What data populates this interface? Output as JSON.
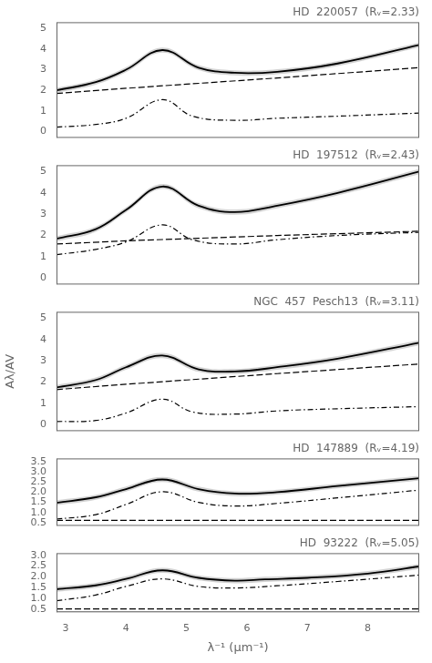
{
  "chart_data": [
    {
      "type": "line",
      "title": "HD  220057  (Rᵥ=2.33)",
      "xlim": [
        2.85,
        8.85
      ],
      "ylim": [
        -0.3,
        5.3
      ],
      "yticks": [
        0,
        1,
        2,
        3,
        4,
        5
      ],
      "grid": false,
      "tick_labels": "y",
      "series": [
        {
          "line_style": "solid",
          "color": "#000000",
          "x": [
            2.85,
            3.5,
            4.0,
            4.6,
            5.2,
            5.8,
            6.5,
            7.5,
            8.85
          ],
          "values": [
            2.0,
            2.4,
            3.0,
            3.95,
            3.1,
            2.85,
            2.9,
            3.3,
            4.2
          ],
          "band": {
            "color": "#808080",
            "lower": [
              1.88,
              2.28,
              2.88,
              3.83,
              2.98,
              2.73,
              2.78,
              3.18,
              4.08
            ],
            "upper": [
              2.12,
              2.52,
              3.12,
              4.07,
              3.22,
              2.97,
              3.02,
              3.42,
              4.32
            ]
          }
        },
        {
          "line_style": "dashed",
          "color": "#000000",
          "x": [
            2.85,
            4.0,
            5.0,
            6.5,
            8.85
          ],
          "values": [
            1.85,
            2.1,
            2.3,
            2.6,
            3.1
          ]
        },
        {
          "line_style": "dashdot",
          "color": "#000000",
          "x": [
            2.85,
            3.5,
            4.0,
            4.6,
            5.1,
            5.8,
            6.5,
            7.5,
            8.85
          ],
          "values": [
            0.22,
            0.35,
            0.65,
            1.55,
            0.75,
            0.55,
            0.65,
            0.75,
            0.9
          ]
        }
      ]
    },
    {
      "type": "line",
      "title": "HD  197512  (Rᵥ=2.43)",
      "xlim": [
        2.85,
        8.85
      ],
      "ylim": [
        -0.3,
        5.3
      ],
      "yticks": [
        0,
        1,
        2,
        3,
        4,
        5
      ],
      "grid": false,
      "tick_labels": "y",
      "series": [
        {
          "line_style": "solid",
          "color": "#000000",
          "x": [
            2.85,
            3.5,
            4.0,
            4.6,
            5.2,
            5.8,
            6.5,
            7.5,
            8.85
          ],
          "values": [
            1.85,
            2.3,
            3.2,
            4.3,
            3.4,
            3.1,
            3.4,
            4.0,
            5.0
          ],
          "band": {
            "color": "#808080",
            "lower": [
              1.73,
              2.18,
              3.08,
              4.18,
              3.28,
              2.98,
              3.28,
              3.88,
              4.88
            ],
            "upper": [
              1.97,
              2.42,
              3.32,
              4.42,
              3.52,
              3.22,
              3.52,
              4.12,
              5.12
            ]
          }
        },
        {
          "line_style": "dashed",
          "color": "#000000",
          "x": [
            2.85,
            4.0,
            5.0,
            6.5,
            8.85
          ],
          "values": [
            1.6,
            1.75,
            1.85,
            2.0,
            2.2
          ]
        },
        {
          "line_style": "dashdot",
          "color": "#000000",
          "x": [
            2.85,
            3.5,
            4.0,
            4.6,
            5.1,
            5.8,
            6.5,
            7.5,
            8.85
          ],
          "values": [
            1.1,
            1.35,
            1.7,
            2.5,
            1.8,
            1.6,
            1.8,
            2.0,
            2.15
          ]
        }
      ]
    },
    {
      "type": "line",
      "title": "NGC  457  Pesch13  (Rᵥ=3.11)",
      "ylabel": "Aλ/AV",
      "xlim": [
        2.85,
        8.85
      ],
      "ylim": [
        -0.3,
        5.3
      ],
      "yticks": [
        0,
        1,
        2,
        3,
        4,
        5
      ],
      "grid": false,
      "tick_labels": "y",
      "series": [
        {
          "line_style": "solid",
          "color": "#000000",
          "x": [
            2.85,
            3.5,
            4.0,
            4.6,
            5.2,
            5.8,
            6.5,
            7.5,
            8.85
          ],
          "values": [
            1.75,
            2.1,
            2.7,
            3.25,
            2.6,
            2.5,
            2.7,
            3.1,
            3.85
          ],
          "band": {
            "color": "#808080",
            "lower": [
              1.63,
              1.98,
              2.58,
              3.13,
              2.48,
              2.38,
              2.58,
              2.98,
              3.73
            ],
            "upper": [
              1.87,
              2.22,
              2.82,
              3.37,
              2.72,
              2.62,
              2.82,
              3.22,
              3.97
            ]
          }
        },
        {
          "line_style": "dashed",
          "color": "#000000",
          "x": [
            2.85,
            4.0,
            5.0,
            6.5,
            8.85
          ],
          "values": [
            1.65,
            1.9,
            2.1,
            2.4,
            2.85
          ]
        },
        {
          "line_style": "dashdot",
          "color": "#000000",
          "x": [
            2.85,
            3.5,
            4.0,
            4.6,
            5.1,
            5.8,
            6.5,
            7.5,
            8.85
          ],
          "values": [
            0.15,
            0.2,
            0.55,
            1.2,
            0.6,
            0.5,
            0.65,
            0.75,
            0.85
          ]
        }
      ]
    },
    {
      "type": "line",
      "title": "HD  147889  (Rᵥ=4.19)",
      "xlim": [
        2.85,
        8.85
      ],
      "ylim": [
        0.35,
        3.65
      ],
      "yticks": [
        0.5,
        {
          "value": 1,
          "label": "1.0"
        },
        1.5,
        {
          "value": 2,
          "label": "2.0"
        },
        2.5,
        {
          "value": 3,
          "label": "3.0"
        },
        3.5
      ],
      "grid": false,
      "tick_labels": "y",
      "series": [
        {
          "line_style": "solid",
          "color": "#000000",
          "x": [
            2.85,
            3.5,
            4.0,
            4.6,
            5.2,
            5.8,
            6.5,
            7.5,
            8.85
          ],
          "values": [
            1.48,
            1.75,
            2.15,
            2.62,
            2.15,
            1.93,
            2.0,
            2.3,
            2.68
          ],
          "band": {
            "color": "#808080",
            "lower": [
              1.36,
              1.63,
              2.03,
              2.5,
              2.03,
              1.81,
              1.88,
              2.18,
              2.56
            ],
            "upper": [
              1.6,
              1.87,
              2.27,
              2.74,
              2.27,
              2.05,
              2.12,
              2.42,
              2.8
            ]
          }
        },
        {
          "line_style": "dashed",
          "color": "#000000",
          "x": [
            2.85,
            4.0,
            5.0,
            6.5,
            8.85
          ],
          "values": [
            0.62,
            0.62,
            0.62,
            0.62,
            0.62
          ]
        },
        {
          "line_style": "dashdot",
          "color": "#000000",
          "x": [
            2.85,
            3.5,
            4.0,
            4.6,
            5.2,
            5.8,
            6.5,
            7.5,
            8.85
          ],
          "values": [
            0.68,
            0.9,
            1.4,
            2.02,
            1.5,
            1.32,
            1.45,
            1.72,
            2.1
          ]
        }
      ]
    },
    {
      "type": "line",
      "title": "HD  93222  (Rᵥ=5.05)",
      "xlabel": "λ⁻¹ (μm⁻¹)",
      "xlim": [
        2.85,
        8.85
      ],
      "xticks": [
        3,
        4,
        5,
        6,
        7,
        8
      ],
      "ylim": [
        0.35,
        3.1
      ],
      "yticks": [
        0.5,
        {
          "value": 1,
          "label": "1.0"
        },
        1.5,
        {
          "value": 2,
          "label": "2.0"
        },
        2.5,
        {
          "value": 3,
          "label": "3.0"
        }
      ],
      "grid": false,
      "series": [
        {
          "line_style": "solid",
          "color": "#000000",
          "x": [
            2.85,
            3.5,
            4.0,
            4.6,
            5.2,
            5.8,
            6.3,
            7.0,
            8.0,
            8.85
          ],
          "values": [
            1.42,
            1.6,
            1.9,
            2.3,
            1.95,
            1.82,
            1.88,
            1.95,
            2.15,
            2.48
          ],
          "band": {
            "color": "#808080",
            "lower": [
              1.3,
              1.48,
              1.78,
              2.18,
              1.83,
              1.7,
              1.76,
              1.83,
              2.03,
              2.36
            ],
            "upper": [
              1.54,
              1.72,
              2.02,
              2.42,
              2.07,
              1.94,
              2.0,
              2.07,
              2.27,
              2.6
            ]
          }
        },
        {
          "line_style": "dashed",
          "color": "#000000",
          "x": [
            2.85,
            4.0,
            5.0,
            6.5,
            8.85
          ],
          "values": [
            0.5,
            0.5,
            0.5,
            0.5,
            0.5
          ]
        },
        {
          "line_style": "dashdot",
          "color": "#000000",
          "x": [
            2.85,
            3.5,
            4.0,
            4.6,
            5.2,
            5.8,
            6.5,
            7.5,
            8.85
          ],
          "values": [
            0.88,
            1.15,
            1.55,
            1.9,
            1.55,
            1.48,
            1.58,
            1.78,
            2.08
          ]
        }
      ]
    }
  ]
}
